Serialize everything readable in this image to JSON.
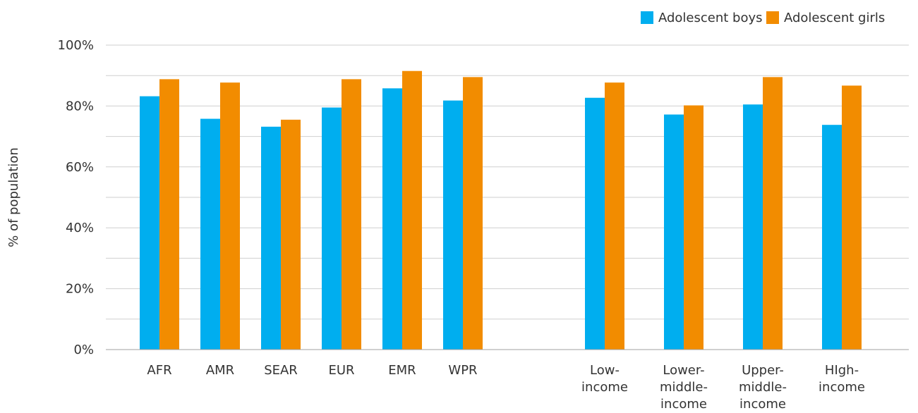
{
  "chart_data": {
    "type": "bar",
    "title": "",
    "xlabel": "",
    "ylabel": "% of population",
    "ylim": [
      0,
      100
    ],
    "y_tick_values": [
      0,
      20,
      40,
      60,
      80,
      100
    ],
    "y_tick_labels": [
      "0%",
      "20%",
      "40%",
      "60%",
      "80%",
      "100%"
    ],
    "grid": true,
    "legend_position": "top-right",
    "groups": [
      {
        "categories": [
          [
            "AFR"
          ],
          [
            "AMR"
          ],
          [
            "SEAR"
          ],
          [
            "EUR"
          ],
          [
            "EMR"
          ],
          [
            "WPR"
          ]
        ]
      },
      {
        "categories": [
          [
            "Low-",
            "income"
          ],
          [
            "Lower-",
            "middle-",
            "income"
          ],
          [
            "Upper-",
            "middle-",
            "income"
          ],
          [
            "HIgh-",
            "income"
          ]
        ]
      }
    ],
    "categories": [
      "AFR",
      "AMR",
      "SEAR",
      "EUR",
      "EMR",
      "WPR",
      "Low-income",
      "Lower-middle-income",
      "Upper-middle-income",
      "HIgh-income"
    ],
    "series": [
      {
        "name": "Adolescent boys",
        "color": "#00AEEF",
        "values": [
          83.2,
          75.8,
          73.2,
          79.5,
          85.8,
          81.8,
          82.7,
          77.2,
          80.5,
          73.8
        ]
      },
      {
        "name": "Adolescent girls",
        "color": "#F28C00",
        "values": [
          88.8,
          87.7,
          75.5,
          88.8,
          91.5,
          89.5,
          87.7,
          80.2,
          89.5,
          86.7
        ]
      }
    ]
  }
}
